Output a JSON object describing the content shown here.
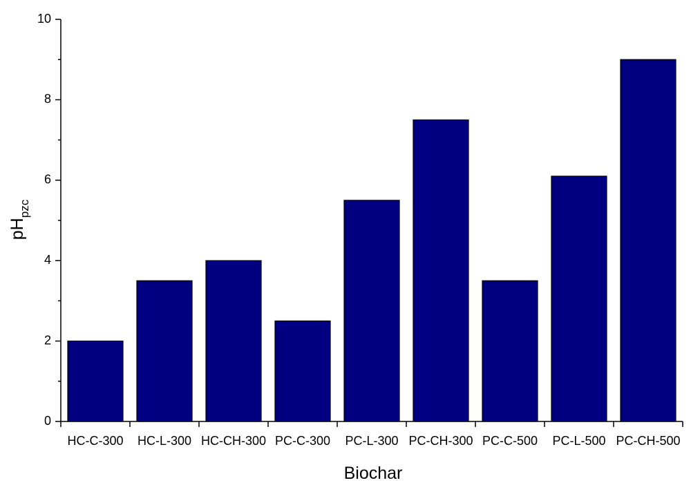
{
  "chart_data": {
    "type": "bar",
    "xlabel": "Biochar",
    "ylabel": {
      "text": "pH",
      "subscript": "pzc"
    },
    "categories": [
      "HC-C-300",
      "HC-L-300",
      "HC-CH-300",
      "PC-C-300",
      "PC-L-300",
      "PC-CH-300",
      "PC-C-500",
      "PC-L-500",
      "PC-CH-500"
    ],
    "values": [
      2,
      3.5,
      4,
      2.5,
      5.5,
      7.5,
      3.5,
      6.1,
      9
    ],
    "color": "#000080",
    "ylim": [
      0,
      10
    ],
    "yticks": [
      0,
      2,
      4,
      6,
      8,
      10
    ],
    "yticks_minor": [
      1,
      3,
      5,
      7,
      9
    ],
    "grid": false
  }
}
